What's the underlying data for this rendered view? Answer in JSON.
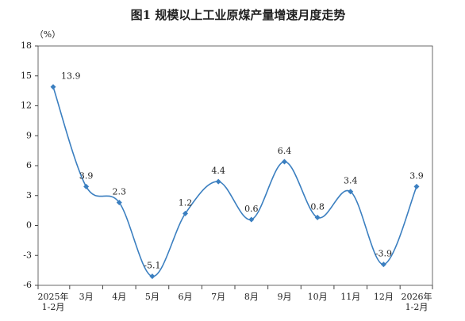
{
  "chart_data": {
    "type": "line",
    "title": "图1 规模以上工业原煤产量增速月度走势",
    "y_label": "（%）",
    "categories": [
      "2025年\n1-2月",
      "3月",
      "4月",
      "5月",
      "6月",
      "7月",
      "8月",
      "9月",
      "10月",
      "11月",
      "12月",
      "2026年\n1-2月"
    ],
    "values": [
      13.9,
      3.9,
      2.3,
      -5.1,
      1.2,
      4.4,
      0.6,
      6.4,
      0.8,
      3.4,
      -3.9,
      3.9
    ],
    "color": "#3b7fc0",
    "ylim": [
      -6,
      18
    ],
    "yticks": [
      -6,
      -3,
      0,
      3,
      6,
      9,
      12,
      15,
      18
    ],
    "smooth": true
  }
}
